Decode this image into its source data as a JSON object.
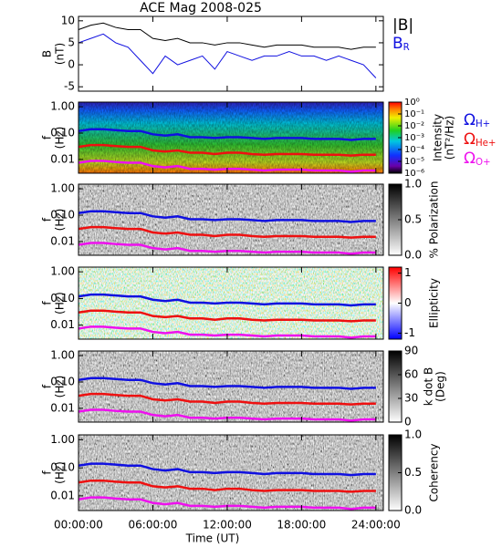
{
  "chart_data": [
    {
      "type": "line",
      "title": "ACE Mag 2008-025",
      "ylabel": "B",
      "yunit": "(nT)",
      "x": [
        0,
        1,
        2,
        3,
        4,
        5,
        6,
        7,
        8,
        9,
        10,
        11,
        12,
        13,
        14,
        15,
        16,
        17,
        18,
        19,
        20,
        21,
        22,
        23,
        24
      ],
      "ylim": [
        -6,
        11
      ],
      "yticks": [
        -5,
        0,
        5,
        10
      ],
      "series": [
        {
          "name": "|B|",
          "color": "#000000",
          "values": [
            8,
            9,
            9.5,
            8.5,
            8,
            8,
            6,
            5.5,
            6,
            5,
            5,
            4.5,
            5,
            5,
            4.5,
            4,
            4.5,
            4.5,
            4.5,
            4,
            4,
            4,
            3.5,
            4,
            4
          ]
        },
        {
          "name": "B",
          "subscript": "R",
          "color": "#1010e0",
          "values": [
            5,
            6,
            7,
            5,
            4,
            1,
            -2,
            2,
            0,
            1,
            2,
            -1,
            3,
            2,
            1,
            2,
            2,
            3,
            2,
            2,
            1,
            2,
            1,
            0,
            -3
          ]
        }
      ]
    },
    {
      "type": "spectrogram",
      "ylabel": "f",
      "yunit": "(Hz)",
      "ylog": true,
      "ylim": [
        0.003,
        1.5
      ],
      "yticks": [
        {
          "value": 1,
          "label": "1.00"
        },
        {
          "value": 0.1,
          "label": "0.10"
        },
        {
          "value": 0.01,
          "label": "0.01"
        }
      ],
      "colormap": "rainbow",
      "clabel": "Intensity",
      "cunit": "(nT²/Hz)",
      "clog": true,
      "clim": [
        1e-06,
        1
      ],
      "cticks": [
        {
          "value": 1,
          "label": "10⁰"
        },
        {
          "value": 0.1,
          "label": "10⁻¹"
        },
        {
          "value": 0.01,
          "label": "10⁻²"
        },
        {
          "value": 0.001,
          "label": "10⁻³"
        },
        {
          "value": 0.0001,
          "label": "10⁻⁴"
        },
        {
          "value": 1e-05,
          "label": "10⁻⁵"
        },
        {
          "value": 1e-06,
          "label": "10⁻⁶"
        }
      ],
      "x": [
        0,
        1,
        2,
        3,
        4,
        5,
        6,
        7,
        8,
        9,
        10,
        11,
        12,
        13,
        14,
        15,
        16,
        17,
        18,
        19,
        20,
        21,
        22,
        23,
        24
      ],
      "series": [
        {
          "name": "Ω",
          "subscript": "H+",
          "color": "#1010e0",
          "values": [
            0.12,
            0.14,
            0.14,
            0.13,
            0.12,
            0.12,
            0.09,
            0.08,
            0.09,
            0.07,
            0.07,
            0.065,
            0.07,
            0.07,
            0.065,
            0.06,
            0.065,
            0.065,
            0.065,
            0.06,
            0.06,
            0.06,
            0.055,
            0.06,
            0.06
          ]
        },
        {
          "name": "Ω",
          "subscript": "He+",
          "color": "#ee1010",
          "values": [
            0.03,
            0.035,
            0.035,
            0.032,
            0.03,
            0.03,
            0.022,
            0.02,
            0.022,
            0.018,
            0.018,
            0.016,
            0.018,
            0.018,
            0.016,
            0.015,
            0.016,
            0.016,
            0.016,
            0.015,
            0.015,
            0.015,
            0.014,
            0.015,
            0.015
          ]
        },
        {
          "name": "Ω",
          "subscript": "O+",
          "color": "#ee10ee",
          "values": [
            0.0075,
            0.0088,
            0.0088,
            0.008,
            0.0075,
            0.0075,
            0.0056,
            0.005,
            0.0056,
            0.0044,
            0.0044,
            0.0041,
            0.0044,
            0.0044,
            0.0041,
            0.0038,
            0.0041,
            0.0041,
            0.0041,
            0.0038,
            0.0038,
            0.0038,
            0.0034,
            0.0038,
            0.0038
          ]
        }
      ]
    },
    {
      "type": "spectrogram",
      "ylabel": "f",
      "yunit": "(Hz)",
      "ylog": true,
      "ylim": [
        0.003,
        1.5
      ],
      "yticks": [
        {
          "value": 1,
          "label": "1.00"
        },
        {
          "value": 0.1,
          "label": "0.10"
        },
        {
          "value": 0.01,
          "label": "0.01"
        }
      ],
      "colormap": "gray",
      "clabel": "% Polarization",
      "clim": [
        0,
        1
      ],
      "cticks": [
        {
          "value": 0,
          "label": "0.0"
        },
        {
          "value": 0.5,
          "label": "0.5"
        },
        {
          "value": 1,
          "label": "1.0"
        }
      ]
    },
    {
      "type": "spectrogram",
      "ylabel": "f",
      "yunit": "(Hz)",
      "ylog": true,
      "ylim": [
        0.003,
        1.5
      ],
      "yticks": [
        {
          "value": 1,
          "label": "1.00"
        },
        {
          "value": 0.1,
          "label": "0.10"
        },
        {
          "value": 0.01,
          "label": "0.01"
        }
      ],
      "colormap": "bwr",
      "clabel": "Ellipticity",
      "clim": [
        -1.2,
        1.2
      ],
      "cticks": [
        -1,
        0,
        1
      ]
    },
    {
      "type": "spectrogram",
      "ylabel": "f",
      "yunit": "(Hz)",
      "ylog": true,
      "ylim": [
        0.003,
        1.5
      ],
      "yticks": [
        {
          "value": 1,
          "label": "1.00"
        },
        {
          "value": 0.1,
          "label": "0.10"
        },
        {
          "value": 0.01,
          "label": "0.01"
        }
      ],
      "colormap": "gray",
      "clabel": "k dot B",
      "cunit": "(Deg)",
      "clim": [
        0,
        90
      ],
      "cticks": [
        0,
        30,
        60,
        90
      ]
    },
    {
      "type": "spectrogram",
      "ylabel": "f",
      "yunit": "(Hz)",
      "ylog": true,
      "ylim": [
        0.003,
        1.5
      ],
      "yticks": [
        {
          "value": 1,
          "label": "1.00"
        },
        {
          "value": 0.1,
          "label": "0.10"
        },
        {
          "value": 0.01,
          "label": "0.01"
        }
      ],
      "colormap": "gray",
      "clabel": "Coherency",
      "clim": [
        0,
        1
      ],
      "cticks": [
        {
          "value": 0,
          "label": "0.0"
        },
        {
          "value": 0.5,
          "label": "0.5"
        },
        {
          "value": 1,
          "label": "1.0"
        }
      ],
      "xlabel": "Time (UT)",
      "xlim": [
        0,
        24.6
      ],
      "xticks": [
        {
          "value": 0,
          "label": "00:00:00"
        },
        {
          "value": 6,
          "label": "06:00:00"
        },
        {
          "value": 12,
          "label": "12:00:00"
        },
        {
          "value": 18,
          "label": "18:00:00"
        },
        {
          "value": 24,
          "label": "24:00:00"
        }
      ]
    }
  ]
}
